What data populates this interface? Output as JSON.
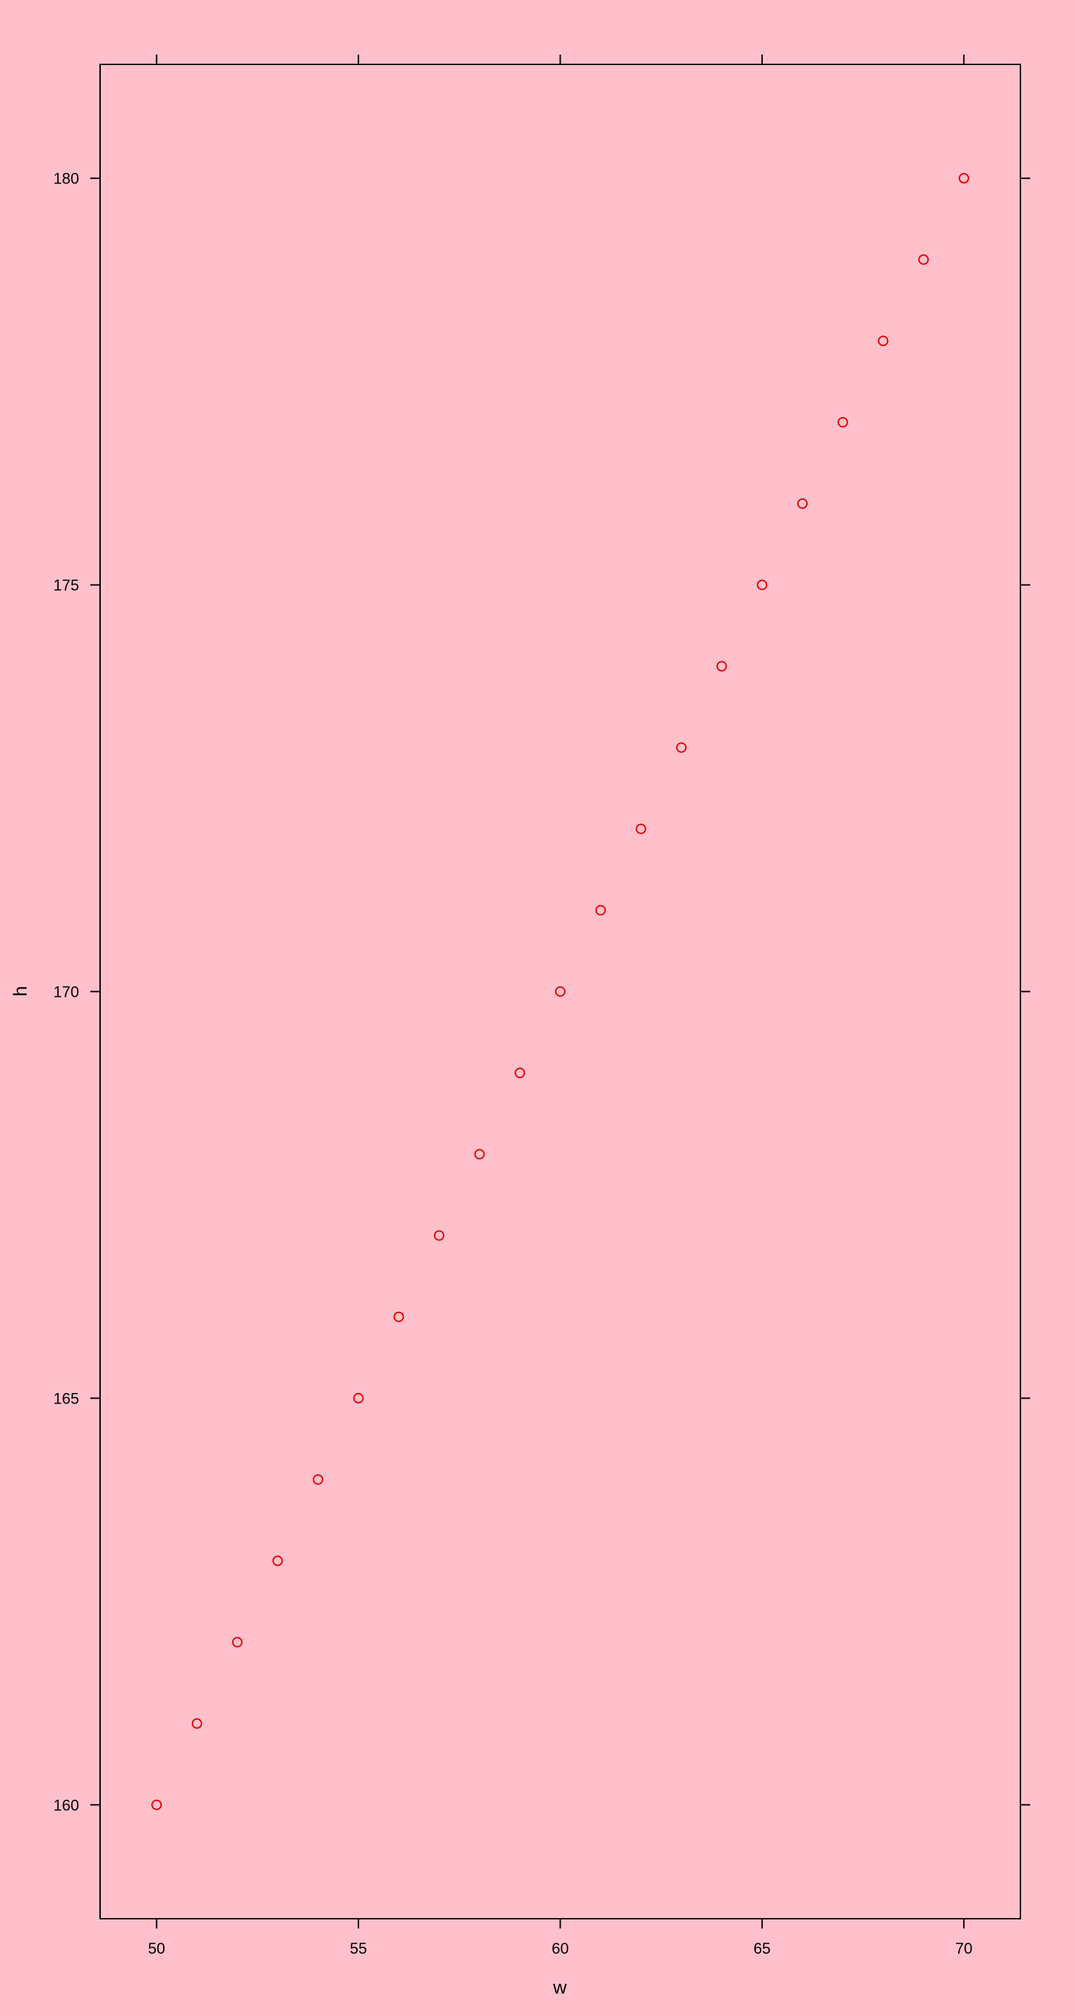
{
  "chart_data": {
    "type": "scatter",
    "title": "",
    "xlabel": "w",
    "ylabel": "h",
    "xlim": [
      48.6,
      71.4
    ],
    "ylim": [
      158.6,
      181.4
    ],
    "xticks": [
      50,
      55,
      60,
      65,
      70
    ],
    "yticks": [
      160,
      165,
      170,
      175,
      180
    ],
    "xtick_labels": [
      "50",
      "55",
      "60",
      "65",
      "70"
    ],
    "ytick_labels": [
      "160",
      "165",
      "170",
      "175",
      "180"
    ],
    "grid": false,
    "marker": "open-circle",
    "colors": {
      "background": "#ffc0cb",
      "points": "#e00000",
      "axis": "#000000"
    },
    "series": [
      {
        "x": [
          50,
          51,
          52,
          53,
          54,
          55,
          56,
          57,
          58,
          59,
          60,
          61,
          62,
          63,
          64,
          65,
          66,
          67,
          68,
          69,
          70
        ],
        "y": [
          160,
          161,
          162,
          163,
          164,
          165,
          166,
          167,
          168,
          169,
          170,
          171,
          172,
          173,
          174,
          175,
          176,
          177,
          178,
          179,
          180
        ]
      }
    ]
  }
}
